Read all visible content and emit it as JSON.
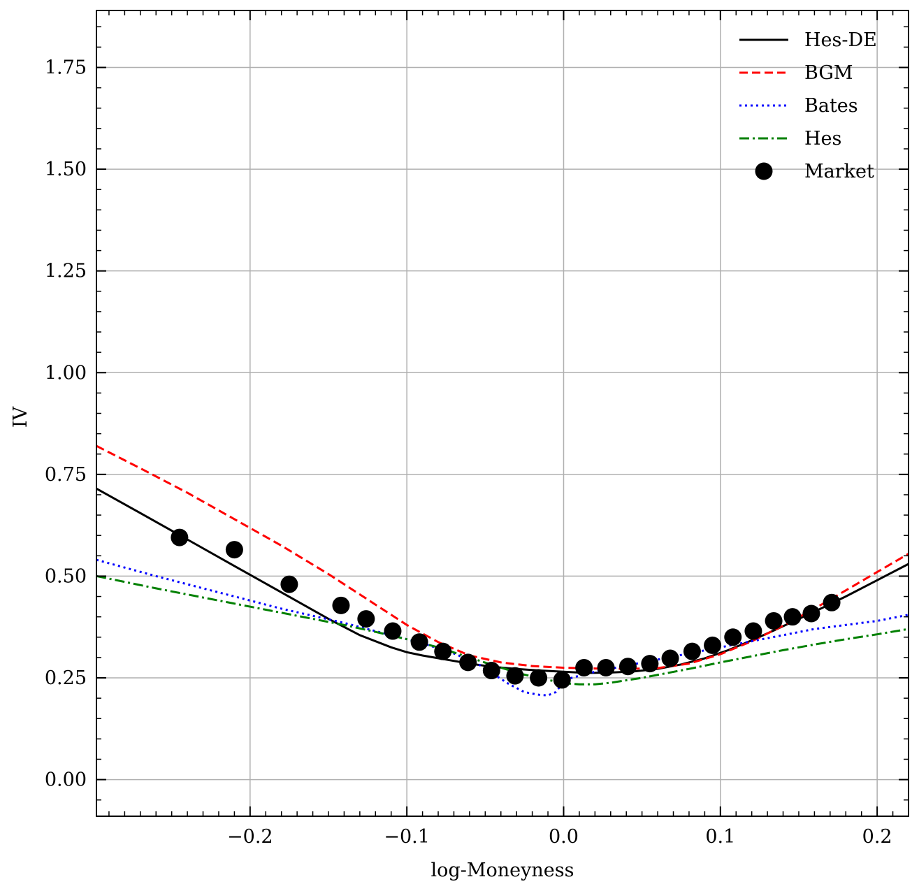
{
  "chart_data": {
    "type": "line",
    "title": "",
    "xlabel": "log-Moneyness",
    "ylabel": "IV",
    "xlim": [
      -0.298,
      0.22
    ],
    "ylim": [
      -0.09,
      1.89
    ],
    "xticks": [
      -0.2,
      -0.1,
      0.0,
      0.1,
      0.2
    ],
    "xtick_labels": [
      "−0.2",
      "−0.1",
      "0.0",
      "0.1",
      "0.2"
    ],
    "yticks": [
      0.0,
      0.25,
      0.5,
      0.75,
      1.0,
      1.25,
      1.5,
      1.75
    ],
    "ytick_labels": [
      "0.00",
      "0.25",
      "0.50",
      "0.75",
      "1.00",
      "1.25",
      "1.50",
      "1.75"
    ],
    "grid": true,
    "legend_position": "top-right",
    "series": [
      {
        "name": "Hes-DE",
        "style": "solid",
        "color": "#000000",
        "x": [
          -0.298,
          -0.27,
          -0.24,
          -0.21,
          -0.18,
          -0.15,
          -0.13,
          -0.11,
          -0.1,
          -0.09,
          -0.075,
          -0.06,
          -0.045,
          -0.03,
          -0.015,
          0.0,
          0.015,
          0.03,
          0.045,
          0.06,
          0.075,
          0.09,
          0.105,
          0.12,
          0.135,
          0.15,
          0.165,
          0.18,
          0.2,
          0.22
        ],
        "y": [
          0.715,
          0.655,
          0.59,
          0.525,
          0.46,
          0.395,
          0.355,
          0.325,
          0.313,
          0.305,
          0.295,
          0.285,
          0.277,
          0.272,
          0.268,
          0.265,
          0.262,
          0.263,
          0.266,
          0.272,
          0.283,
          0.298,
          0.318,
          0.342,
          0.368,
          0.395,
          0.422,
          0.45,
          0.49,
          0.53
        ]
      },
      {
        "name": "BGM",
        "style": "dashed",
        "color": "#ff0000",
        "x": [
          -0.298,
          -0.27,
          -0.24,
          -0.21,
          -0.18,
          -0.15,
          -0.12,
          -0.1,
          -0.08,
          -0.06,
          -0.04,
          -0.02,
          0.0,
          0.02,
          0.04,
          0.06,
          0.08,
          0.1,
          0.12,
          0.14,
          0.16,
          0.18,
          0.2,
          0.22
        ],
        "y": [
          0.82,
          0.765,
          0.705,
          0.64,
          0.575,
          0.505,
          0.43,
          0.38,
          0.338,
          0.305,
          0.288,
          0.279,
          0.275,
          0.273,
          0.272,
          0.274,
          0.285,
          0.308,
          0.34,
          0.378,
          0.42,
          0.465,
          0.51,
          0.555
        ]
      },
      {
        "name": "Bates",
        "style": "dotted",
        "color": "#0000ff",
        "x": [
          -0.298,
          -0.26,
          -0.22,
          -0.18,
          -0.14,
          -0.11,
          -0.09,
          -0.07,
          -0.055,
          -0.045,
          -0.035,
          -0.025,
          -0.015,
          -0.01,
          -0.005,
          0.0,
          0.005,
          0.01,
          0.02,
          0.04,
          0.06,
          0.08,
          0.1,
          0.12,
          0.14,
          0.16,
          0.18,
          0.2,
          0.22
        ],
        "y": [
          0.54,
          0.5,
          0.46,
          0.42,
          0.385,
          0.355,
          0.335,
          0.31,
          0.285,
          0.26,
          0.235,
          0.215,
          0.208,
          0.207,
          0.215,
          0.24,
          0.25,
          0.255,
          0.265,
          0.28,
          0.295,
          0.31,
          0.325,
          0.34,
          0.355,
          0.37,
          0.38,
          0.39,
          0.405
        ]
      },
      {
        "name": "Hes",
        "style": "dashdot",
        "color": "#008000",
        "x": [
          -0.298,
          -0.26,
          -0.22,
          -0.18,
          -0.14,
          -0.12,
          -0.1,
          -0.08,
          -0.06,
          -0.04,
          -0.025,
          -0.01,
          0.0,
          0.01,
          0.02,
          0.03,
          0.05,
          0.08,
          0.1,
          0.12,
          0.14,
          0.16,
          0.18,
          0.2,
          0.22
        ],
        "y": [
          0.5,
          0.47,
          0.44,
          0.41,
          0.38,
          0.363,
          0.345,
          0.325,
          0.3,
          0.275,
          0.258,
          0.245,
          0.237,
          0.234,
          0.234,
          0.238,
          0.25,
          0.272,
          0.288,
          0.303,
          0.318,
          0.332,
          0.345,
          0.357,
          0.37
        ]
      },
      {
        "name": "Market",
        "style": "scatter",
        "color": "#000000",
        "x": [
          -0.245,
          -0.21,
          -0.175,
          -0.142,
          -0.126,
          -0.109,
          -0.092,
          -0.077,
          -0.061,
          -0.046,
          -0.031,
          -0.016,
          -0.001,
          0.013,
          0.027,
          0.041,
          0.055,
          0.068,
          0.082,
          0.095,
          0.108,
          0.121,
          0.134,
          0.146,
          0.158,
          0.171
        ],
        "y": [
          0.595,
          0.565,
          0.48,
          0.428,
          0.395,
          0.365,
          0.338,
          0.315,
          0.288,
          0.268,
          0.255,
          0.25,
          0.245,
          0.275,
          0.275,
          0.278,
          0.285,
          0.298,
          0.315,
          0.33,
          0.35,
          0.365,
          0.39,
          0.4,
          0.408,
          0.435
        ]
      }
    ]
  }
}
